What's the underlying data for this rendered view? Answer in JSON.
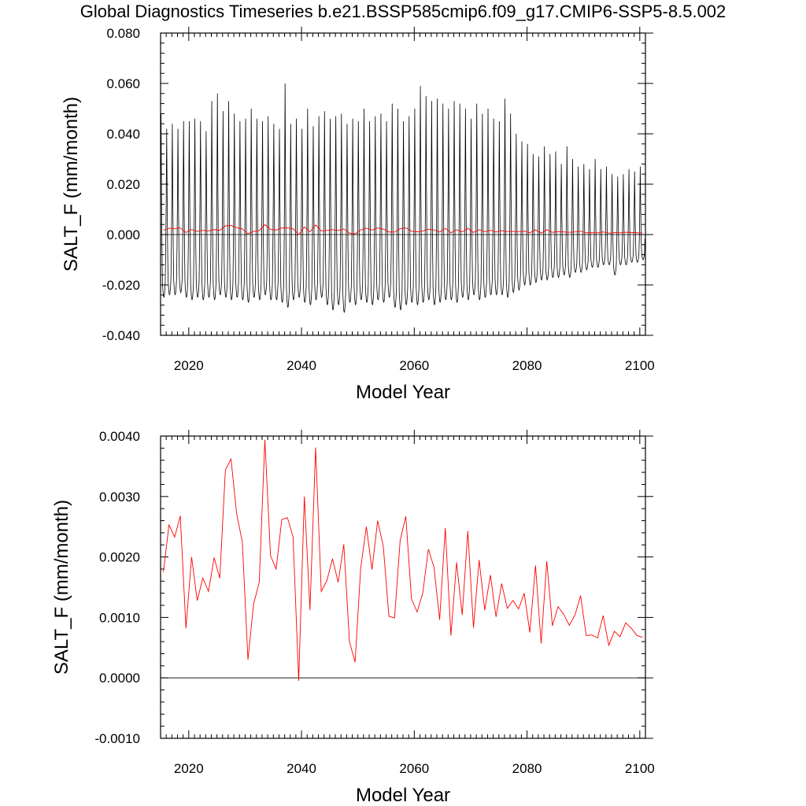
{
  "title": "Global Diagnostics Timeseries b.e21.BSSP585cmip6.f09_g17.CMIP6-SSP5-8.5.002",
  "chart_data": [
    {
      "type": "line",
      "xlabel": "Model Year",
      "ylabel": "SALT_F (mm/month)",
      "xlim": [
        2015,
        2101
      ],
      "ylim": [
        -0.04,
        0.08
      ],
      "xticks": [
        2020,
        2040,
        2060,
        2080,
        2100
      ],
      "xtick_labels": [
        "2020",
        "2040",
        "2060",
        "2080",
        "2100"
      ],
      "yticks": [
        -0.04,
        -0.02,
        0.0,
        0.02,
        0.04,
        0.06,
        0.08
      ],
      "ytick_labels": [
        "-0.040",
        "-0.020",
        "0.000",
        "0.020",
        "0.040",
        "0.060",
        "0.080"
      ],
      "zero_line": true,
      "grid": false,
      "series": [
        {
          "color": "#000000",
          "description": "monthly values, seasonal cycle",
          "x_start": 2015.0,
          "x_step": 0.08333,
          "annual_max": [
            0.048,
            0.042,
            0.044,
            0.042,
            0.045,
            0.045,
            0.046,
            0.045,
            0.041,
            0.053,
            0.056,
            0.049,
            0.053,
            0.048,
            0.045,
            0.046,
            0.05,
            0.046,
            0.045,
            0.047,
            0.044,
            0.042,
            0.06,
            0.044,
            0.046,
            0.042,
            0.05,
            0.043,
            0.047,
            0.049,
            0.046,
            0.047,
            0.048,
            0.044,
            0.046,
            0.045,
            0.05,
            0.045,
            0.047,
            0.048,
            0.045,
            0.052,
            0.05,
            0.045,
            0.047,
            0.05,
            0.059,
            0.055,
            0.053,
            0.054,
            0.052,
            0.05,
            0.053,
            0.052,
            0.05,
            0.046,
            0.052,
            0.048,
            0.05,
            0.046,
            0.045,
            0.054,
            0.048,
            0.04,
            0.037,
            0.036,
            0.032,
            0.031,
            0.035,
            0.032,
            0.033,
            0.028,
            0.035,
            0.03,
            0.027,
            0.028,
            0.026,
            0.03,
            0.026,
            0.027,
            0.024,
            0.023,
            0.024,
            0.026,
            0.025,
            0.027
          ],
          "annual_min": [
            -0.025,
            -0.024,
            -0.024,
            -0.023,
            -0.025,
            -0.026,
            -0.025,
            -0.026,
            -0.025,
            -0.026,
            -0.024,
            -0.025,
            -0.026,
            -0.025,
            -0.026,
            -0.027,
            -0.025,
            -0.026,
            -0.024,
            -0.026,
            -0.026,
            -0.027,
            -0.029,
            -0.026,
            -0.025,
            -0.027,
            -0.028,
            -0.026,
            -0.025,
            -0.028,
            -0.03,
            -0.028,
            -0.031,
            -0.027,
            -0.028,
            -0.026,
            -0.027,
            -0.028,
            -0.026,
            -0.027,
            -0.025,
            -0.029,
            -0.03,
            -0.028,
            -0.027,
            -0.028,
            -0.027,
            -0.026,
            -0.028,
            -0.027,
            -0.026,
            -0.026,
            -0.027,
            -0.025,
            -0.026,
            -0.024,
            -0.026,
            -0.025,
            -0.024,
            -0.024,
            -0.024,
            -0.025,
            -0.023,
            -0.022,
            -0.02,
            -0.02,
            -0.019,
            -0.018,
            -0.018,
            -0.017,
            -0.017,
            -0.016,
            -0.017,
            -0.015,
            -0.015,
            -0.014,
            -0.013,
            -0.013,
            -0.012,
            -0.012,
            -0.016,
            -0.012,
            -0.012,
            -0.011,
            -0.011,
            -0.01
          ]
        },
        {
          "color": "#ff0000",
          "description": "annual mean (same values as lower panel)",
          "x_start": 2015.5,
          "x_step": 1
        }
      ]
    },
    {
      "type": "line",
      "xlabel": "Model Year",
      "ylabel": "SALT_F (mm/month)",
      "xlim": [
        2015,
        2101
      ],
      "ylim": [
        -0.001,
        0.004
      ],
      "xticks": [
        2020,
        2040,
        2060,
        2080,
        2100
      ],
      "xtick_labels": [
        "2020",
        "2040",
        "2060",
        "2080",
        "2100"
      ],
      "yticks": [
        -0.001,
        0.0,
        0.001,
        0.002,
        0.003,
        0.004
      ],
      "ytick_labels": [
        "-0.0010",
        "0.0000",
        "0.0010",
        "0.0020",
        "0.0030",
        "0.0040"
      ],
      "zero_line": true,
      "grid": false,
      "series": [
        {
          "color": "#ff0000",
          "x_start": 2015.5,
          "x_step": 1,
          "values": [
            0.00175,
            0.00253,
            0.00233,
            0.00268,
            0.00082,
            0.002,
            0.00128,
            0.00165,
            0.00143,
            0.00199,
            0.00165,
            0.00344,
            0.00362,
            0.00271,
            0.00225,
            0.0003,
            0.00122,
            0.00158,
            0.00394,
            0.00202,
            0.0018,
            0.00262,
            0.00265,
            0.00233,
            -5e-05,
            0.003,
            0.00112,
            0.00381,
            0.00143,
            0.00161,
            0.00197,
            0.00158,
            0.00221,
            0.0006,
            0.00026,
            0.00182,
            0.0025,
            0.00179,
            0.0026,
            0.00218,
            0.00102,
            0.00099,
            0.00228,
            0.00267,
            0.00131,
            0.00109,
            0.0014,
            0.00213,
            0.00183,
            0.00096,
            0.00248,
            0.0007,
            0.00191,
            0.00104,
            0.00243,
            0.00083,
            0.00195,
            0.00112,
            0.0017,
            0.00101,
            0.00156,
            0.00115,
            0.00128,
            0.00114,
            0.0014,
            0.00075,
            0.00186,
            0.00057,
            0.00193,
            0.00086,
            0.00118,
            0.00105,
            0.00087,
            0.00104,
            0.00136,
            0.0007,
            0.00071,
            0.00066,
            0.00103,
            0.00054,
            0.00077,
            0.00068,
            0.00091,
            0.00082,
            0.0007,
            0.00067
          ]
        }
      ]
    }
  ]
}
